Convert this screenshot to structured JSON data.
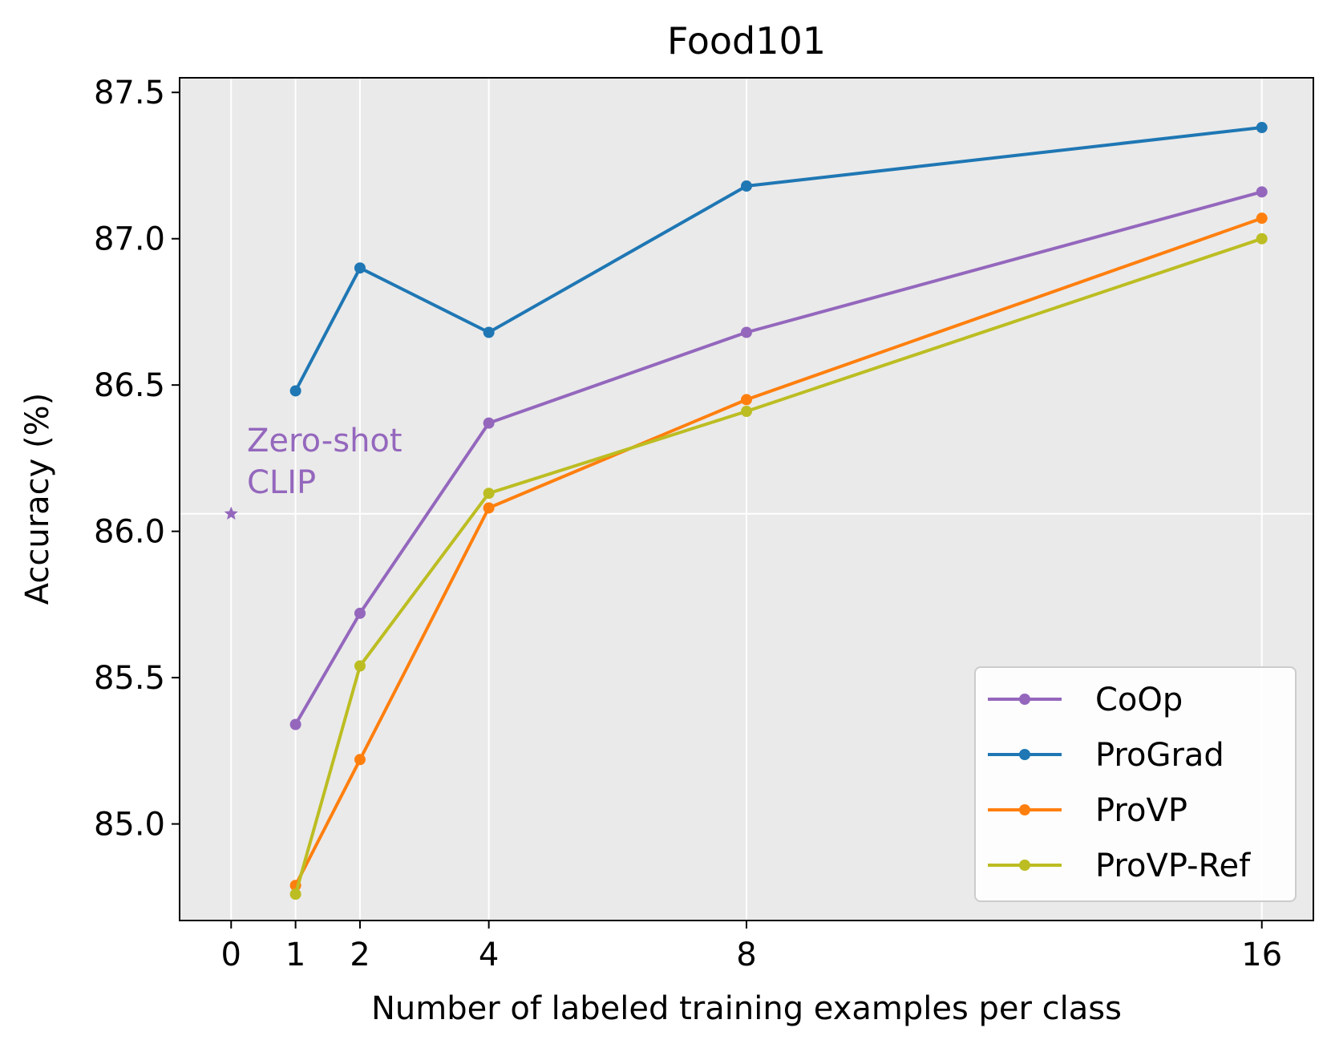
{
  "chart_data": {
    "type": "line",
    "title": "Food101",
    "xlabel": "Number of labeled training examples per class",
    "ylabel": "Accuracy (%)",
    "x_ticks": [
      0,
      1,
      2,
      4,
      8,
      16
    ],
    "x_tick_labels": [
      "0",
      "1",
      "2",
      "4",
      "8",
      "16"
    ],
    "y_ticks": [
      85.0,
      85.5,
      86.0,
      86.5,
      87.0,
      87.5
    ],
    "y_tick_labels": [
      "85.0",
      "85.5",
      "86.0",
      "86.5",
      "87.0",
      "87.5"
    ],
    "xlim": [
      -0.8,
      16.8
    ],
    "ylim": [
      84.67,
      87.55
    ],
    "grid": true,
    "legend_position": "bottom-right",
    "zero_shot": {
      "x": 0,
      "y": 86.06,
      "label_line1": "Zero-shot",
      "label_line2": "CLIP",
      "color": "#9467bd"
    },
    "series": [
      {
        "name": "CoOp",
        "color": "#9467bd",
        "x": [
          1,
          2,
          4,
          8,
          16
        ],
        "values": [
          85.34,
          85.72,
          86.37,
          86.68,
          87.16
        ]
      },
      {
        "name": "ProGrad",
        "color": "#1f77b4",
        "x": [
          1,
          2,
          4,
          8,
          16
        ],
        "values": [
          86.48,
          86.9,
          86.68,
          87.18,
          87.38
        ]
      },
      {
        "name": "ProVP",
        "color": "#ff7f0e",
        "x": [
          1,
          2,
          4,
          8,
          16
        ],
        "values": [
          84.79,
          85.22,
          86.08,
          86.45,
          87.07
        ]
      },
      {
        "name": "ProVP-Ref",
        "color": "#bcbd22",
        "x": [
          1,
          2,
          4,
          8,
          16
        ],
        "values": [
          84.76,
          85.54,
          86.13,
          86.41,
          87.0
        ]
      }
    ]
  }
}
